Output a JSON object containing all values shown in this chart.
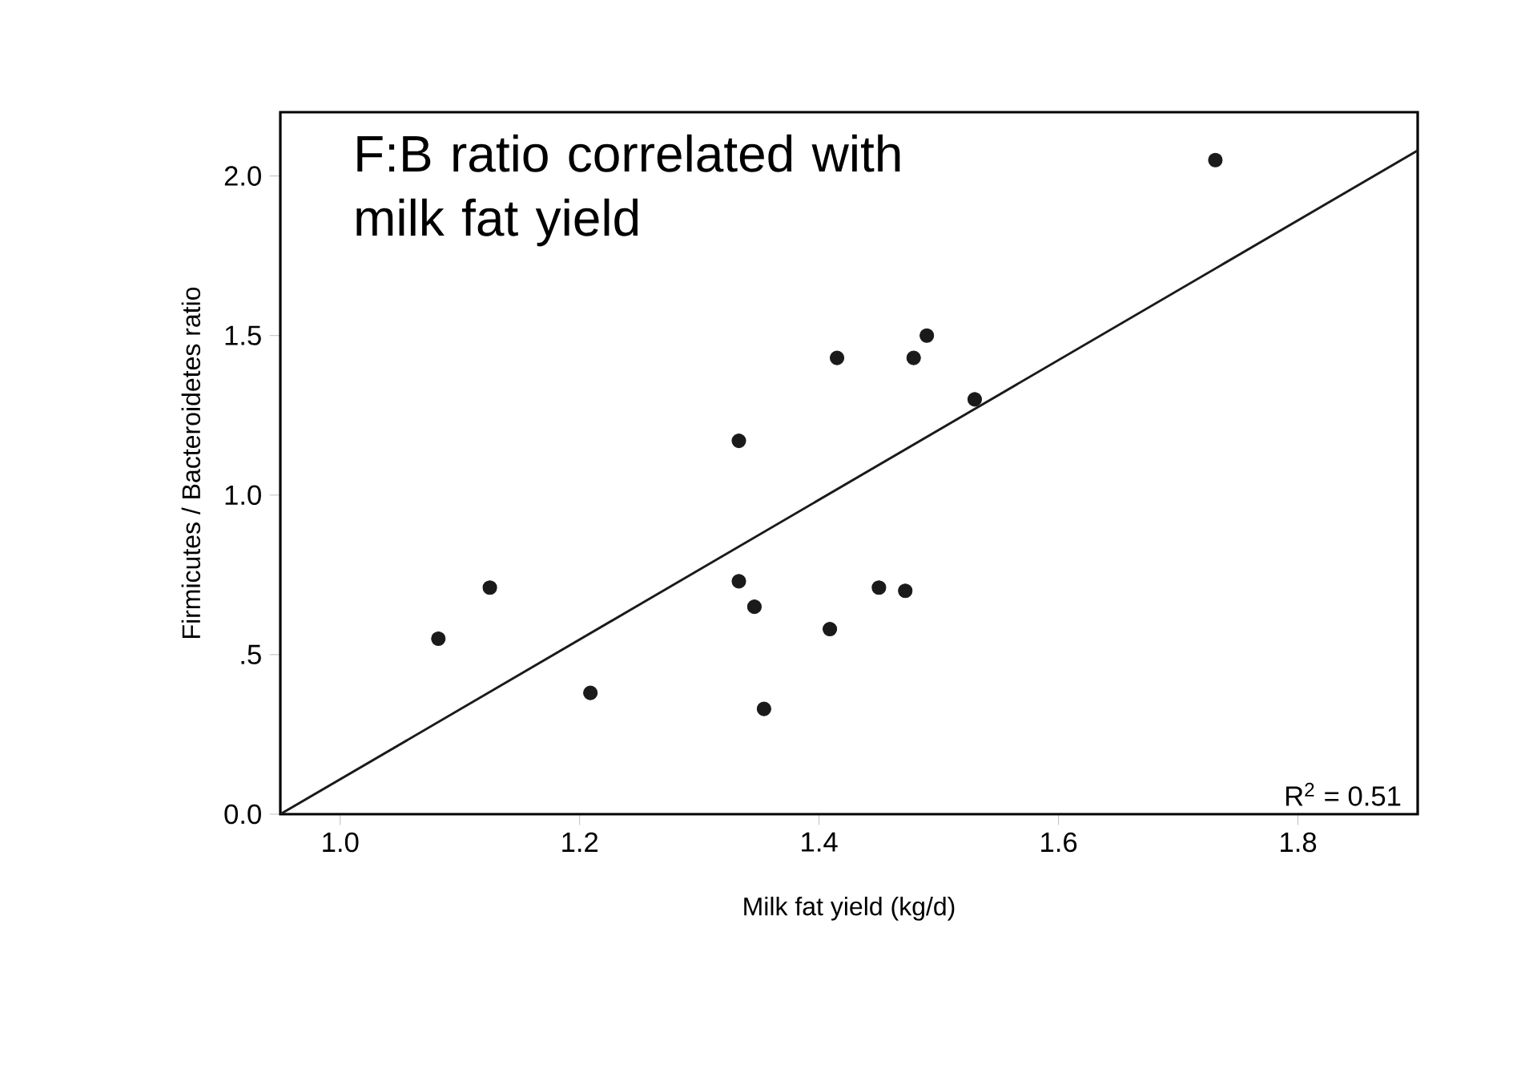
{
  "chart_data": {
    "type": "scatter",
    "xlabel": "Milk fat yield (kg/d)",
    "ylabel": "Firmicutes / Bacteroidetes ratio",
    "annotations": [
      "F:B ratio correlated with milk fat yield",
      "R$^{2}$ = 0.51"
    ],
    "xlim": [
      0.95,
      1.9
    ],
    "ylim": [
      0,
      2.2
    ],
    "xticks": [
      {
        "value": 1.0,
        "label": "1.0"
      },
      {
        "value": 1.2,
        "label": "1.2"
      },
      {
        "value": 1.4,
        "label": "1.4"
      },
      {
        "value": 1.6,
        "label": "1.6"
      },
      {
        "value": 1.8,
        "label": "1.8"
      }
    ],
    "yticks": [
      {
        "value": 0,
        "label": "0.0"
      },
      {
        "value": 0.5,
        "label": ".5"
      },
      {
        "value": 1.0,
        "label": "1.0"
      },
      {
        "value": 1.5,
        "label": "1.5"
      },
      {
        "value": 2.0,
        "label": "2.0"
      }
    ],
    "grid": false,
    "series": [
      {
        "color": "#1a1a1a",
        "x": [
          1.082,
          1.125,
          1.209,
          1.333,
          1.333,
          1.346,
          1.354,
          1.409,
          1.415,
          1.45,
          1.472,
          1.479,
          1.49,
          1.53,
          1.731
        ],
        "values": [
          0.55,
          0.71,
          0.38,
          1.17,
          0.73,
          0.65,
          0.33,
          0.58,
          1.43,
          0.71,
          0.7,
          1.43,
          1.5,
          1.3,
          2.05
        ]
      },
      {
        "type": "line",
        "color": "#1a1a1a",
        "line_style": "solid",
        "x": [
          0.95,
          1.9
        ],
        "values": [
          0,
          2.08
        ]
      }
    ]
  }
}
